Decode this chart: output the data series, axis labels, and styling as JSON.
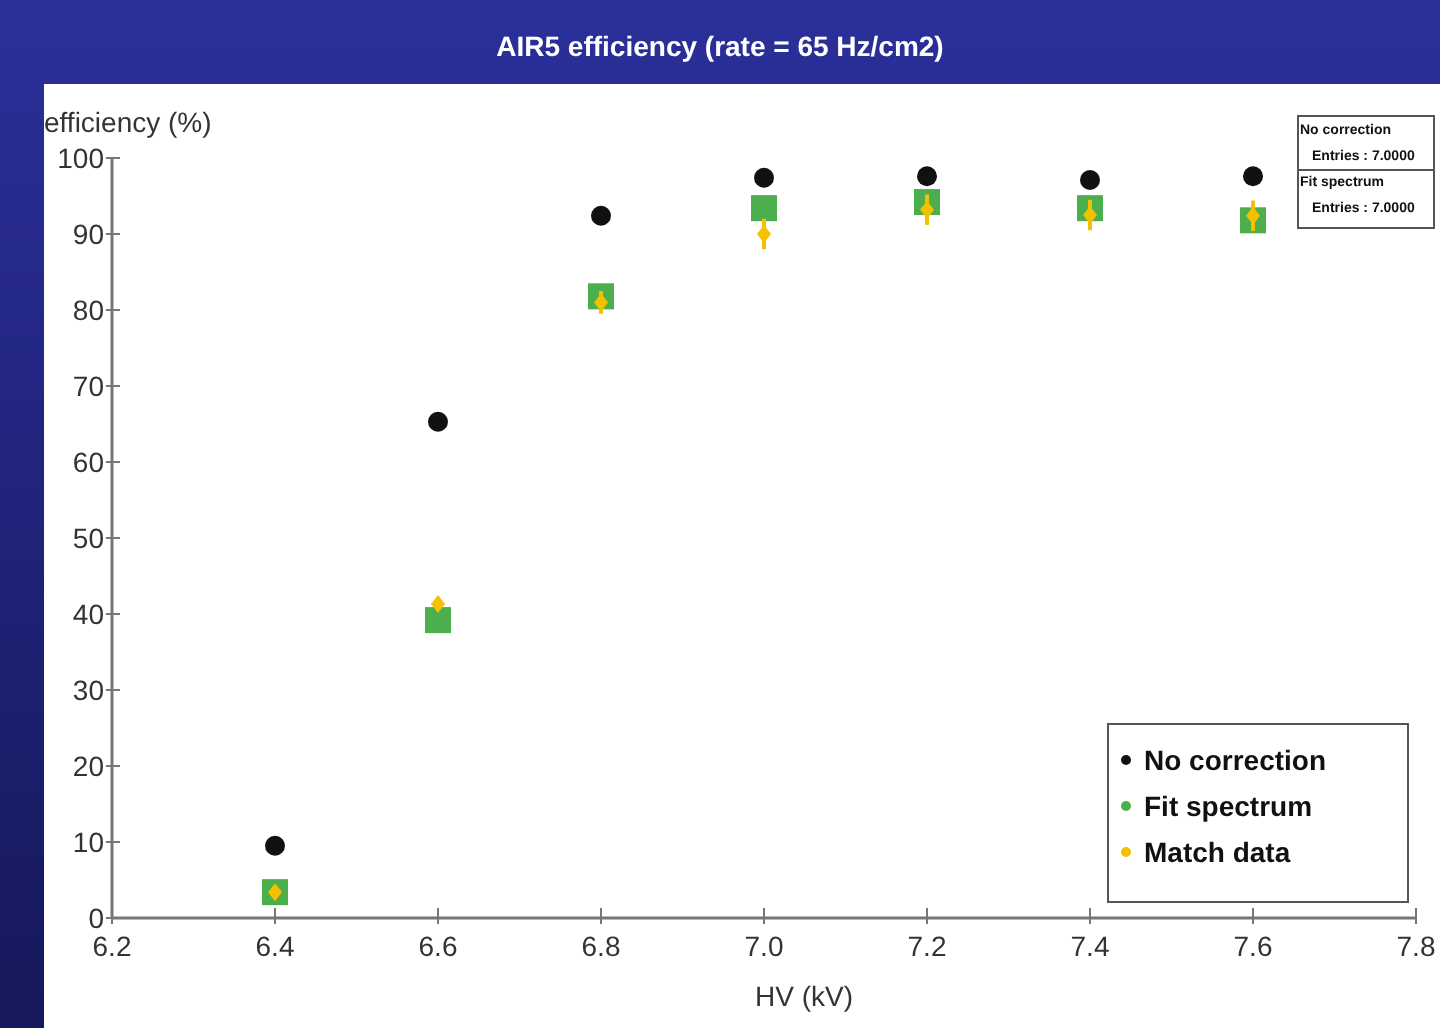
{
  "chart_data": {
    "type": "scatter",
    "title": "AIR5 efficiency (rate = 65 Hz/cm2)",
    "xlabel": "HV (kV)",
    "ylabel": "efficiency (%)",
    "x": [
      6.4,
      6.6,
      6.8,
      7.0,
      7.2,
      7.4,
      7.6
    ],
    "series": [
      {
        "name": "No correction",
        "color": "#111111",
        "marker": "circle",
        "values": [
          9.5,
          65.3,
          92.4,
          97.4,
          97.6,
          97.1,
          97.6
        ]
      },
      {
        "name": "Fit spectrum",
        "color": "#4cae4c",
        "marker": "square",
        "values": [
          3.4,
          39.2,
          81.8,
          93.4,
          94.2,
          93.4,
          91.8
        ]
      },
      {
        "name": "Match data",
        "color": "#f5c000",
        "marker": "diamond",
        "values": [
          3.4,
          41.3,
          81,
          90,
          93.2,
          92.5,
          92.4
        ],
        "errors": [
          null,
          null,
          1.5,
          2,
          2,
          2,
          2
        ]
      }
    ],
    "xlim": [
      6.2,
      7.8
    ],
    "xticks": [
      {
        "value": 6.2,
        "label": "6.2"
      },
      {
        "value": 6.4,
        "label": "6.4"
      },
      {
        "value": 6.6,
        "label": "6.6"
      },
      {
        "value": 6.8,
        "label": "6.8"
      },
      {
        "value": 7.0,
        "label": "7.0"
      },
      {
        "value": 7.2,
        "label": "7.2"
      },
      {
        "value": 7.4,
        "label": "7.4"
      },
      {
        "value": 7.6,
        "label": "7.6"
      },
      {
        "value": 7.8,
        "label": "7.8"
      }
    ],
    "ylim": [
      0,
      100
    ],
    "yticks": [
      0,
      10,
      20,
      30,
      40,
      50,
      60,
      70,
      80,
      90,
      100
    ],
    "legend": "bottom right",
    "annotations": [
      "No correction",
      "Entries :  7.0000",
      "Fit spectrum",
      "Entries :  7.0000"
    ]
  }
}
